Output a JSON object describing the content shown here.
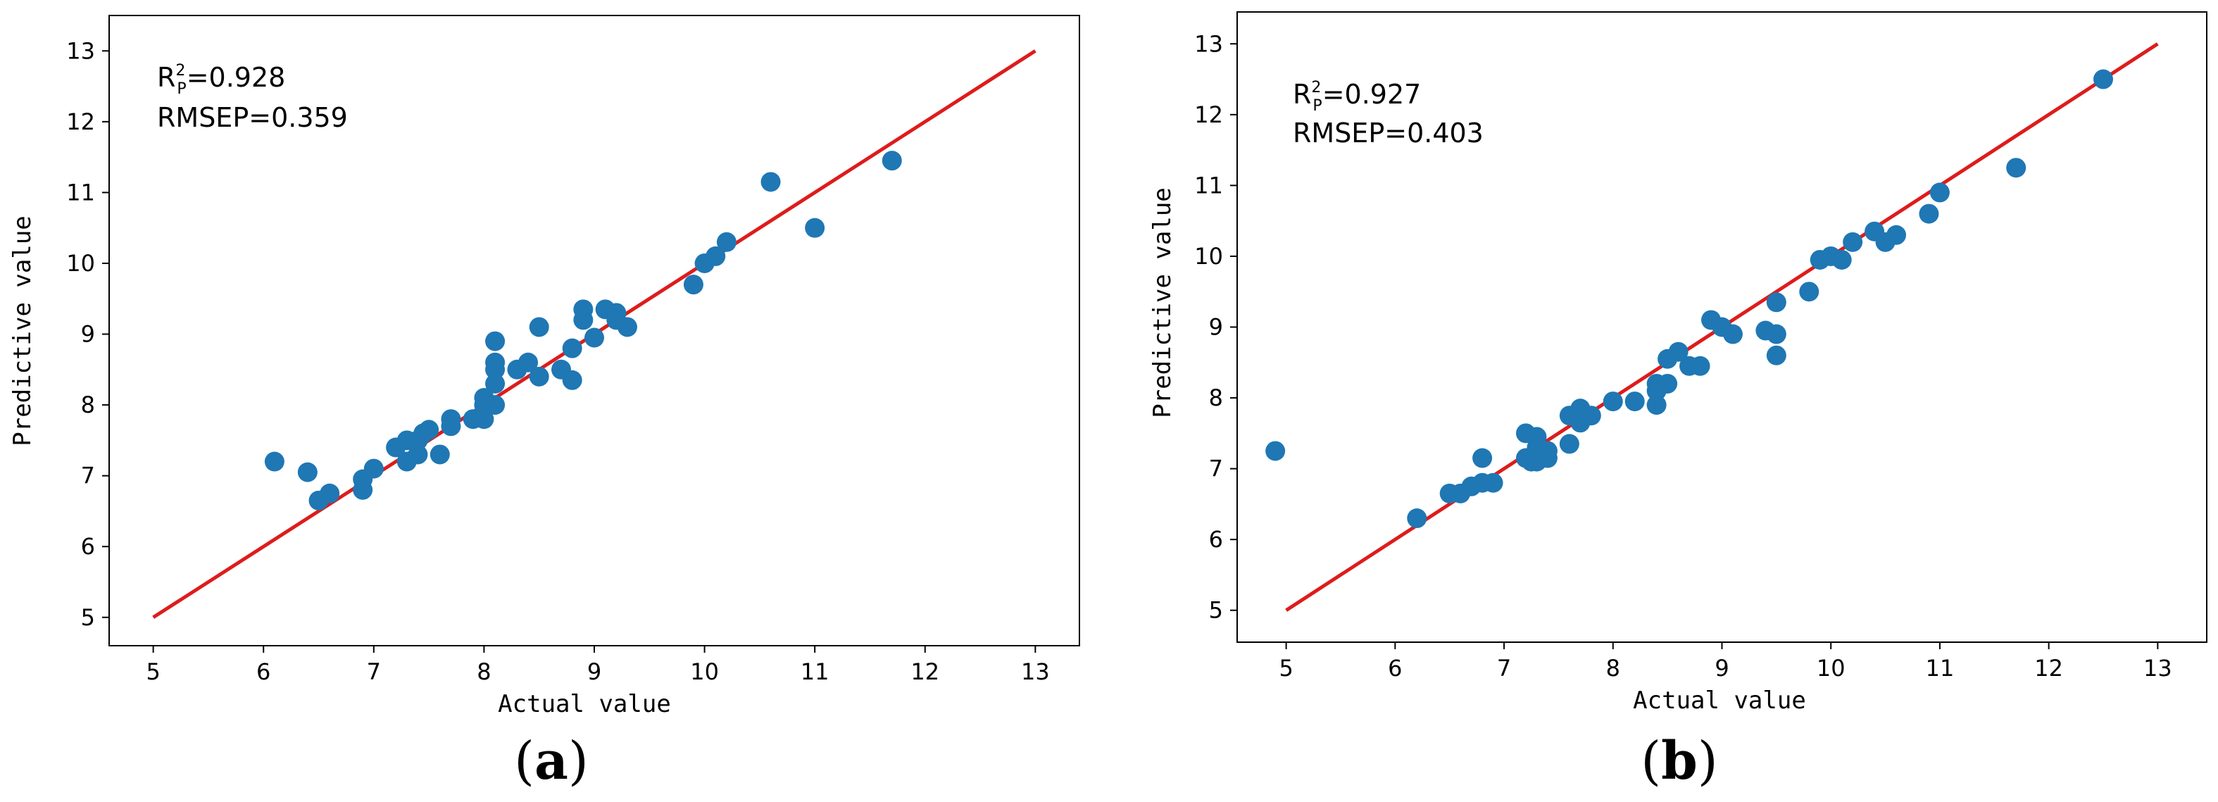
{
  "chart_data": [
    {
      "type": "scatter",
      "panel_label": "(a)",
      "panel_letter": "a",
      "xlabel": "Actual value",
      "ylabel": "Predictive value",
      "xlim": [
        4.6,
        13.4
      ],
      "ylim": [
        4.6,
        13.5
      ],
      "xticks": [
        5,
        6,
        7,
        8,
        9,
        10,
        11,
        12,
        13
      ],
      "yticks": [
        5,
        6,
        7,
        8,
        9,
        10,
        11,
        12,
        13
      ],
      "annotation": {
        "r2_base": "R",
        "r2_sup": "2",
        "r2_sub": "P",
        "r2_value": "=0.928",
        "rmsep": "RMSEP=0.359"
      },
      "fit_line": {
        "x": [
          5,
          13
        ],
        "y": [
          5,
          13
        ],
        "color": "#dd1c1c"
      },
      "point_color": "#1f77b4",
      "points": [
        [
          6.1,
          7.2
        ],
        [
          6.4,
          7.05
        ],
        [
          6.5,
          6.65
        ],
        [
          6.6,
          6.75
        ],
        [
          6.9,
          6.8
        ],
        [
          6.9,
          6.95
        ],
        [
          7.0,
          7.1
        ],
        [
          7.2,
          7.4
        ],
        [
          7.3,
          7.5
        ],
        [
          7.3,
          7.2
        ],
        [
          7.4,
          7.5
        ],
        [
          7.4,
          7.3
        ],
        [
          7.45,
          7.6
        ],
        [
          7.5,
          7.65
        ],
        [
          7.6,
          7.3
        ],
        [
          7.7,
          7.8
        ],
        [
          7.7,
          7.7
        ],
        [
          7.9,
          7.8
        ],
        [
          8.0,
          8.1
        ],
        [
          8.0,
          7.8
        ],
        [
          8.0,
          8.0
        ],
        [
          8.1,
          8.9
        ],
        [
          8.1,
          8.6
        ],
        [
          8.1,
          8.3
        ],
        [
          8.1,
          8.0
        ],
        [
          8.1,
          8.5
        ],
        [
          8.3,
          8.5
        ],
        [
          8.4,
          8.6
        ],
        [
          8.5,
          9.1
        ],
        [
          8.5,
          8.4
        ],
        [
          8.7,
          8.5
        ],
        [
          8.8,
          8.35
        ],
        [
          8.8,
          8.8
        ],
        [
          8.9,
          9.35
        ],
        [
          8.9,
          9.2
        ],
        [
          9.0,
          8.95
        ],
        [
          9.1,
          9.35
        ],
        [
          9.2,
          9.3
        ],
        [
          9.2,
          9.2
        ],
        [
          9.3,
          9.1
        ],
        [
          9.9,
          9.7
        ],
        [
          10.0,
          10.0
        ],
        [
          10.1,
          10.1
        ],
        [
          10.2,
          10.3
        ],
        [
          10.6,
          11.15
        ],
        [
          11.0,
          10.5
        ],
        [
          11.7,
          11.45
        ]
      ]
    },
    {
      "type": "scatter",
      "panel_label": "(b)",
      "panel_letter": "b",
      "xlabel": "Actual value",
      "ylabel": "Predictive value",
      "xlim": [
        4.55,
        13.45
      ],
      "ylim": [
        4.55,
        13.45
      ],
      "xticks": [
        5,
        6,
        7,
        8,
        9,
        10,
        11,
        12,
        13
      ],
      "yticks": [
        5,
        6,
        7,
        8,
        9,
        10,
        11,
        12,
        13
      ],
      "annotation": {
        "r2_base": "R",
        "r2_sup": "2",
        "r2_sub": "P",
        "r2_value": "=0.927",
        "rmsep": "RMSEP=0.403"
      },
      "fit_line": {
        "x": [
          5,
          13
        ],
        "y": [
          5,
          13
        ],
        "color": "#dd1c1c"
      },
      "point_color": "#1f77b4",
      "points": [
        [
          4.9,
          7.25
        ],
        [
          6.2,
          6.3
        ],
        [
          6.5,
          6.65
        ],
        [
          6.6,
          6.65
        ],
        [
          6.7,
          6.75
        ],
        [
          6.8,
          6.8
        ],
        [
          6.8,
          7.15
        ],
        [
          6.9,
          6.8
        ],
        [
          7.2,
          7.5
        ],
        [
          7.2,
          7.15
        ],
        [
          7.25,
          7.1
        ],
        [
          7.3,
          7.45
        ],
        [
          7.3,
          7.1
        ],
        [
          7.3,
          7.3
        ],
        [
          7.35,
          7.2
        ],
        [
          7.4,
          7.25
        ],
        [
          7.4,
          7.15
        ],
        [
          7.6,
          7.75
        ],
        [
          7.6,
          7.35
        ],
        [
          7.7,
          7.85
        ],
        [
          7.7,
          7.65
        ],
        [
          7.8,
          7.75
        ],
        [
          8.0,
          7.95
        ],
        [
          8.2,
          7.95
        ],
        [
          8.4,
          8.2
        ],
        [
          8.4,
          7.9
        ],
        [
          8.4,
          8.1
        ],
        [
          8.5,
          8.55
        ],
        [
          8.5,
          8.2
        ],
        [
          8.6,
          8.65
        ],
        [
          8.7,
          8.45
        ],
        [
          8.8,
          8.45
        ],
        [
          8.9,
          9.1
        ],
        [
          9.0,
          9.0
        ],
        [
          9.1,
          8.9
        ],
        [
          9.4,
          8.95
        ],
        [
          9.5,
          8.9
        ],
        [
          9.5,
          8.6
        ],
        [
          9.5,
          9.35
        ],
        [
          9.8,
          9.5
        ],
        [
          9.9,
          9.95
        ],
        [
          10.0,
          10.0
        ],
        [
          10.1,
          9.95
        ],
        [
          10.2,
          10.2
        ],
        [
          10.4,
          10.35
        ],
        [
          10.5,
          10.2
        ],
        [
          10.6,
          10.3
        ],
        [
          10.9,
          10.6
        ],
        [
          11.0,
          10.9
        ],
        [
          11.7,
          11.25
        ],
        [
          12.5,
          12.5
        ]
      ]
    }
  ]
}
